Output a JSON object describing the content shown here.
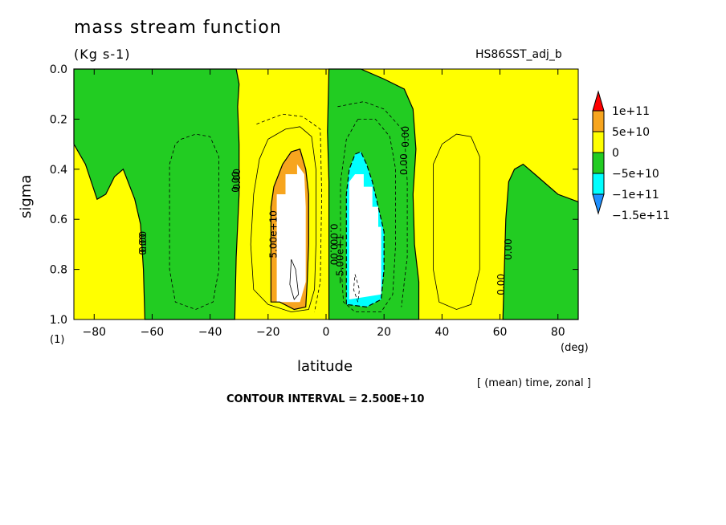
{
  "chart_data": {
    "type": "heatmap",
    "title": "mass stream function",
    "units": "(Kg s-1)",
    "run_name": "HS86SST_adj_b",
    "xlabel": "latitude",
    "x_unit": "(deg)",
    "ylabel": "sigma",
    "y_unit": "(1)",
    "xlim": [
      -87,
      87
    ],
    "ylim": [
      1.0,
      0.0
    ],
    "x_ticks": [
      -80,
      -60,
      -40,
      -20,
      0,
      20,
      40,
      60,
      80
    ],
    "x_tick_labels": [
      "−80",
      "−60",
      "−40",
      "−20",
      "0",
      "20",
      "40",
      "60",
      "80"
    ],
    "y_ticks": [
      0.0,
      0.2,
      0.4,
      0.6,
      0.8,
      1.0
    ],
    "y_tick_labels": [
      "0.0",
      "0.2",
      "0.4",
      "0.6",
      "0.8",
      "1.0"
    ],
    "averaging_note": "[ (mean) time, zonal ]",
    "contour_interval_label": "CONTOUR INTERVAL = 2.500E+10",
    "colorbar": {
      "levels": [
        "1e+11",
        "5e+10",
        "0",
        "−5e+10",
        "−1e+11",
        "−1.5e+11"
      ],
      "colors": [
        "#ff0000",
        "#f7a51e",
        "#ffff00",
        "#22cc22",
        "#00ffff",
        "#1e90ff"
      ],
      "background_fill": "#ffffff"
    },
    "regions": [
      {
        "name": "south-polar-positive",
        "level": "0 to 5e+10",
        "color": "#ffff00",
        "polygon": [
          [
            -87,
            0.3
          ],
          [
            -83,
            0.38
          ],
          [
            -79,
            0.52
          ],
          [
            -76,
            0.5
          ],
          [
            -73,
            0.43
          ],
          [
            -70,
            0.4
          ],
          [
            -66,
            0.52
          ],
          [
            -64,
            0.62
          ],
          [
            -63,
            0.8
          ],
          [
            -62.5,
            1.0
          ],
          [
            -87,
            1.0
          ]
        ]
      },
      {
        "name": "south-negative-cell",
        "level": "-5e+10 to 0",
        "color": "#22cc22",
        "polygon": [
          [
            -87,
            0.0
          ],
          [
            -31,
            0.0
          ],
          [
            -30,
            0.06
          ],
          [
            -30.5,
            0.15
          ],
          [
            -30,
            0.3
          ],
          [
            -30,
            0.5
          ],
          [
            -31,
            0.75
          ],
          [
            -31.5,
            1.0
          ],
          [
            -62.5,
            1.0
          ],
          [
            -63,
            0.8
          ],
          [
            -64,
            0.62
          ],
          [
            -66,
            0.52
          ],
          [
            -70,
            0.4
          ],
          [
            -73,
            0.43
          ],
          [
            -76,
            0.5
          ],
          [
            -79,
            0.52
          ],
          [
            -83,
            0.38
          ],
          [
            -87,
            0.3
          ]
        ]
      },
      {
        "name": "south-hadley-positive",
        "level": "0 to 5e+10",
        "color": "#ffff00",
        "polygon": [
          [
            -31,
            0.0
          ],
          [
            0,
            0.0
          ],
          [
            0,
            1.0
          ],
          [
            -31.5,
            1.0
          ],
          [
            -31,
            0.75
          ],
          [
            -30,
            0.5
          ],
          [
            -30,
            0.3
          ],
          [
            -30.5,
            0.15
          ],
          [
            -30,
            0.06
          ]
        ]
      },
      {
        "name": "south-hadley-orange",
        "level": "5e+10 to 1e+11",
        "color": "#f7a51e",
        "polygon": [
          [
            -19,
            0.93
          ],
          [
            -19,
            0.55
          ],
          [
            -18,
            0.47
          ],
          [
            -15,
            0.38
          ],
          [
            -12,
            0.33
          ],
          [
            -9,
            0.32
          ],
          [
            -7,
            0.4
          ],
          [
            -6,
            0.5
          ],
          [
            -6,
            0.7
          ],
          [
            -6.5,
            0.85
          ],
          [
            -7,
            0.95
          ],
          [
            -11,
            0.96
          ],
          [
            -16,
            0.93
          ]
        ]
      },
      {
        "name": "south-hadley-core",
        "level": "above 1e+11",
        "color": "#ffffff",
        "polygon": [
          [
            -17,
            0.5
          ],
          [
            -14,
            0.5
          ],
          [
            -14,
            0.42
          ],
          [
            -10,
            0.42
          ],
          [
            -10,
            0.38
          ],
          [
            -7.5,
            0.42
          ],
          [
            -7,
            0.55
          ],
          [
            -7,
            0.85
          ],
          [
            -9,
            0.93
          ],
          [
            -12,
            0.93
          ],
          [
            -17,
            0.93
          ]
        ]
      },
      {
        "name": "north-hadley-negative",
        "level": "-5e+10 to 0",
        "color": "#22cc22",
        "polygon": [
          [
            1,
            0.0
          ],
          [
            12,
            0.0
          ],
          [
            20,
            0.04
          ],
          [
            27,
            0.08
          ],
          [
            30,
            0.16
          ],
          [
            31,
            0.32
          ],
          [
            30,
            0.5
          ],
          [
            30.5,
            0.7
          ],
          [
            32,
            0.85
          ],
          [
            32,
            1.0
          ],
          [
            1,
            1.0
          ],
          [
            1,
            0.45
          ],
          [
            0.5,
            0.25
          ]
        ]
      },
      {
        "name": "north-hadley-cyan",
        "level": "-1e+11 to -5e+10",
        "color": "#00ffff",
        "polygon": [
          [
            7,
            0.94
          ],
          [
            7,
            0.5
          ],
          [
            8,
            0.4
          ],
          [
            10,
            0.34
          ],
          [
            12,
            0.33
          ],
          [
            14,
            0.38
          ],
          [
            16,
            0.45
          ],
          [
            18,
            0.55
          ],
          [
            20,
            0.65
          ],
          [
            20,
            0.8
          ],
          [
            19,
            0.92
          ],
          [
            14,
            0.95
          ]
        ]
      },
      {
        "name": "north-hadley-core",
        "level": "below -1e+11",
        "color": "#ffffff",
        "polygon": [
          [
            8,
            0.92
          ],
          [
            8,
            0.45
          ],
          [
            10,
            0.42
          ],
          [
            13,
            0.42
          ],
          [
            13,
            0.47
          ],
          [
            16,
            0.47
          ],
          [
            16,
            0.55
          ],
          [
            18,
            0.55
          ],
          [
            18,
            0.63
          ],
          [
            19,
            0.63
          ],
          [
            19,
            0.9
          ]
        ]
      },
      {
        "name": "north-polar-negative",
        "level": "-5e+10 to 0",
        "color": "#22cc22",
        "polygon": [
          [
            61,
            1.0
          ],
          [
            61.5,
            0.8
          ],
          [
            62,
            0.6
          ],
          [
            63,
            0.45
          ],
          [
            65,
            0.4
          ],
          [
            68,
            0.38
          ],
          [
            72,
            0.42
          ],
          [
            76,
            0.46
          ],
          [
            80,
            0.5
          ],
          [
            87,
            0.53
          ],
          [
            87,
            1.0
          ]
        ]
      }
    ],
    "contours": [
      {
        "label": "south-ferrel-dashed",
        "style": "dashed",
        "points": [
          [
            -50,
            0.28
          ],
          [
            -45,
            0.26
          ],
          [
            -40,
            0.27
          ],
          [
            -37,
            0.35
          ],
          [
            -37,
            0.55
          ],
          [
            -37,
            0.8
          ],
          [
            -39,
            0.93
          ],
          [
            -45,
            0.96
          ],
          [
            -52,
            0.93
          ],
          [
            -54,
            0.8
          ],
          [
            -54,
            0.55
          ],
          [
            -54,
            0.38
          ],
          [
            -52,
            0.3
          ],
          [
            -50,
            0.28
          ]
        ]
      },
      {
        "label": "south-hadley-inner",
        "style": "solid",
        "points": [
          [
            -20,
            0.28
          ],
          [
            -14,
            0.24
          ],
          [
            -9,
            0.23
          ],
          [
            -5,
            0.27
          ],
          [
            -3.5,
            0.4
          ],
          [
            -3.5,
            0.7
          ],
          [
            -4,
            0.88
          ],
          [
            -6,
            0.96
          ],
          [
            -12,
            0.97
          ],
          [
            -20,
            0.94
          ],
          [
            -25,
            0.88
          ],
          [
            -26,
            0.7
          ],
          [
            -25,
            0.5
          ],
          [
            -23,
            0.36
          ],
          [
            -20,
            0.28
          ]
        ]
      },
      {
        "label": "south-hadley-dashed",
        "style": "dashed",
        "points": [
          [
            -24,
            0.22
          ],
          [
            -15,
            0.18
          ],
          [
            -8,
            0.19
          ],
          [
            -2,
            0.24
          ],
          [
            -1.5,
            0.5
          ],
          [
            -2,
            0.85
          ],
          [
            -4,
            0.97
          ]
        ]
      },
      {
        "label": "south-core-diamond",
        "style": "solid",
        "points": [
          [
            -12,
            0.76
          ],
          [
            -10.5,
            0.8
          ],
          [
            -9.5,
            0.9
          ],
          [
            -11,
            0.92
          ],
          [
            -12.5,
            0.86
          ],
          [
            -12,
            0.76
          ]
        ]
      },
      {
        "label": "north-hadley-inner-dashed",
        "style": "dashed",
        "points": [
          [
            11,
            0.2
          ],
          [
            17,
            0.2
          ],
          [
            22,
            0.27
          ],
          [
            24,
            0.4
          ],
          [
            24,
            0.7
          ],
          [
            23,
            0.9
          ],
          [
            19,
            0.97
          ],
          [
            10,
            0.97
          ],
          [
            6,
            0.93
          ],
          [
            5,
            0.75
          ],
          [
            5,
            0.45
          ],
          [
            7,
            0.28
          ],
          [
            11,
            0.2
          ]
        ]
      },
      {
        "label": "north-hadley-outer-dashed",
        "style": "dashed",
        "points": [
          [
            4,
            0.15
          ],
          [
            13,
            0.13
          ],
          [
            20,
            0.16
          ],
          [
            27,
            0.25
          ],
          [
            28,
            0.45
          ],
          [
            28,
            0.75
          ],
          [
            26,
            0.95
          ]
        ]
      },
      {
        "label": "north-core-diamond",
        "style": "dashed",
        "points": [
          [
            10,
            0.82
          ],
          [
            11.5,
            0.88
          ],
          [
            11,
            0.93
          ],
          [
            9.5,
            0.88
          ],
          [
            10,
            0.82
          ]
        ]
      },
      {
        "label": "north-ferrel-solid",
        "style": "solid",
        "points": [
          [
            40,
            0.3
          ],
          [
            45,
            0.26
          ],
          [
            50,
            0.27
          ],
          [
            53,
            0.35
          ],
          [
            53,
            0.55
          ],
          [
            53,
            0.8
          ],
          [
            50,
            0.94
          ],
          [
            45,
            0.96
          ],
          [
            39,
            0.93
          ],
          [
            37,
            0.8
          ],
          [
            37,
            0.55
          ],
          [
            37,
            0.38
          ],
          [
            40,
            0.3
          ]
        ]
      }
    ],
    "contour_labels": [
      {
        "x": -62,
        "y": 0.69,
        "text": "0.00",
        "rotate": -90
      },
      {
        "x": -62,
        "y": 0.7,
        "text": "0.00",
        "rotate": -90
      },
      {
        "x": -30,
        "y": 0.45,
        "text": "0.00",
        "rotate": -90
      },
      {
        "x": -29.6,
        "y": 0.44,
        "text": "0.00",
        "rotate": -90
      },
      {
        "x": -17,
        "y": 0.66,
        "text": "5.00e+10",
        "rotate": -90
      },
      {
        "x": 1.5,
        "y": 0.66,
        "text": "0.00",
        "rotate": 90
      },
      {
        "x": 1.5,
        "y": 0.74,
        "text": "0.00",
        "rotate": 90
      },
      {
        "x": 6,
        "y": 0.76,
        "text": "−5.00e+1",
        "rotate": -90
      },
      {
        "x": 28,
        "y": 0.38,
        "text": "0.00",
        "rotate": -90
      },
      {
        "x": 28.5,
        "y": 0.27,
        "text": "0.00",
        "rotate": -90
      },
      {
        "x": 61.5,
        "y": 0.86,
        "text": "0.00",
        "rotate": -90
      },
      {
        "x": 64,
        "y": 0.72,
        "text": "0.00",
        "rotate": -90
      }
    ]
  }
}
